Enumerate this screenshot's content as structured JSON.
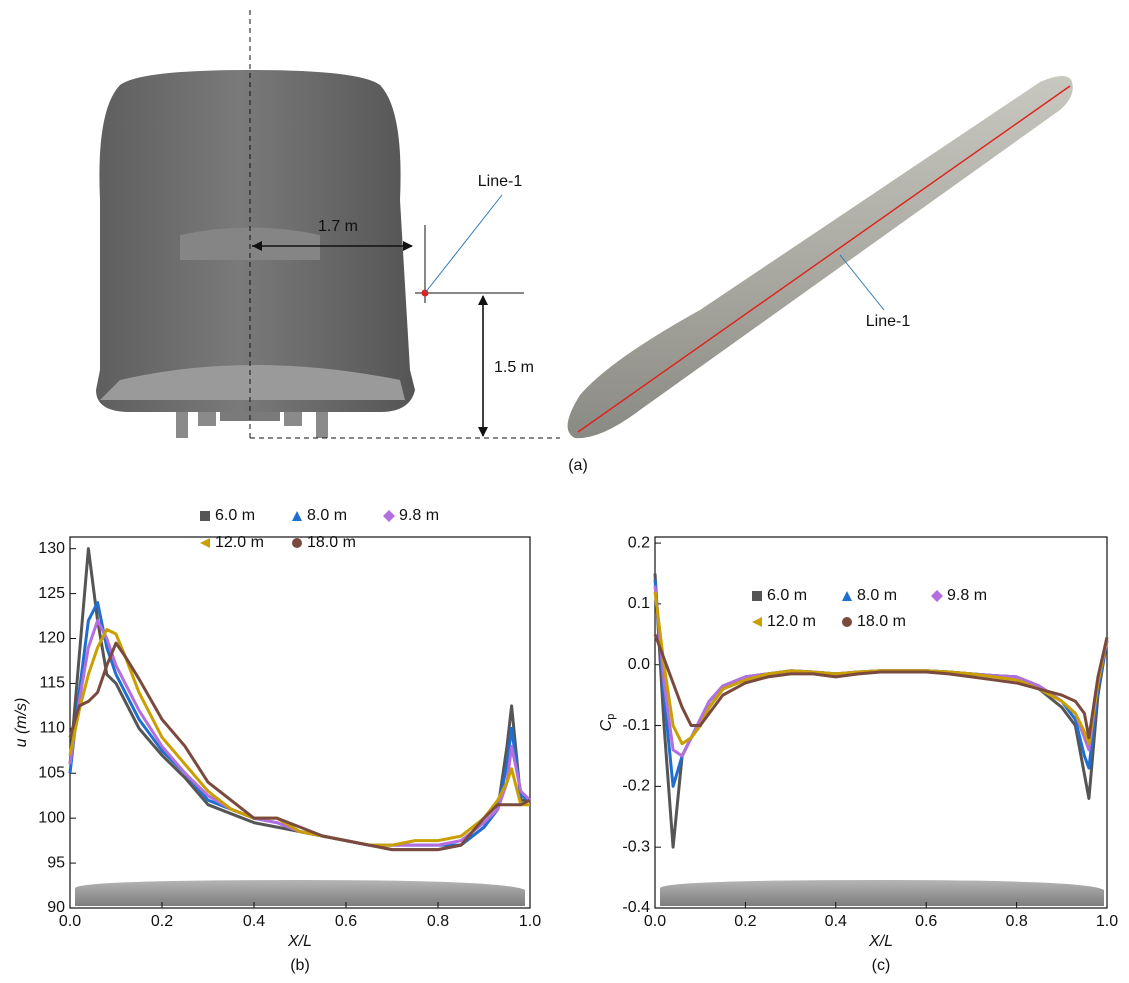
{
  "figure_a": {
    "dim_width": "1.7 m",
    "dim_height": "1.5 m",
    "line_label_front": "Line-1",
    "line_label_side": "Line-1",
    "label": "(a)"
  },
  "chart_data": [
    {
      "type": "line",
      "label": "(b)",
      "xlabel": "X/L",
      "ylabel": "u (m/s)",
      "x": [
        0,
        0.02,
        0.04,
        0.06,
        0.08,
        0.1,
        0.12,
        0.15,
        0.2,
        0.25,
        0.3,
        0.35,
        0.4,
        0.45,
        0.5,
        0.55,
        0.6,
        0.65,
        0.7,
        0.75,
        0.8,
        0.85,
        0.9,
        0.93,
        0.95,
        0.96,
        0.98,
        1.0
      ],
      "series": [
        {
          "name": "6.0 m",
          "color": "#555555",
          "marker": "square",
          "values": [
            106,
            118,
            130,
            122,
            116,
            115,
            113,
            110,
            107,
            104.5,
            101.5,
            100.5,
            99.5,
            99,
            98.5,
            98,
            97.5,
            97,
            96.5,
            96.5,
            96.5,
            97,
            99,
            101,
            108,
            112.5,
            102,
            102
          ]
        },
        {
          "name": "8.0 m",
          "color": "#1f6fd1",
          "marker": "triangle",
          "values": [
            105,
            114,
            122,
            124,
            119,
            116,
            114,
            111,
            107.5,
            105,
            102,
            101,
            100,
            99.5,
            98.5,
            98,
            97.5,
            97,
            97,
            97,
            97,
            97,
            99,
            101,
            106,
            110,
            102.5,
            102
          ]
        },
        {
          "name": "9.8 m",
          "color": "#b36ee0",
          "marker": "diamond",
          "values": [
            106,
            113,
            119,
            122,
            120,
            117,
            115,
            112,
            108,
            105,
            102.5,
            101,
            100,
            99.5,
            98.5,
            98,
            97.5,
            97,
            97,
            97,
            97,
            97.5,
            99.5,
            101,
            104,
            108,
            103,
            102
          ]
        },
        {
          "name": "12.0 m",
          "color": "#c9a000",
          "marker": "left-triangle",
          "values": [
            107,
            112,
            116,
            119,
            121,
            120.5,
            118,
            114,
            109,
            106,
            103,
            101,
            100,
            100,
            98.5,
            98,
            97.5,
            97,
            97,
            97.5,
            97.5,
            98,
            100,
            102,
            104,
            105.5,
            101.5,
            101.5
          ]
        },
        {
          "name": "18.0 m",
          "color": "#7b4a3f",
          "marker": "circle",
          "values": [
            109,
            112.5,
            113,
            114,
            117,
            119.5,
            118,
            115.5,
            111,
            108,
            104,
            102,
            100,
            100,
            99,
            98,
            97.5,
            97,
            96.5,
            96.5,
            96.5,
            97,
            100,
            101.5,
            101.5,
            101.5,
            101.5,
            102
          ]
        }
      ],
      "xlim": [
        0,
        1
      ],
      "ylim": [
        90,
        131.3
      ],
      "xticks": [
        {
          "value": 0,
          "label": "0.0"
        },
        0.2,
        0.4,
        0.6,
        0.8,
        {
          "value": 1,
          "label": "1.0"
        }
      ],
      "yticks": [
        90,
        95,
        100,
        105,
        110,
        115,
        120,
        125,
        130
      ]
    },
    {
      "type": "line",
      "label": "(c)",
      "xlabel": "X/L",
      "ylabel": "C",
      "ylabel_sub": "p",
      "x": [
        0,
        0.02,
        0.04,
        0.06,
        0.08,
        0.1,
        0.12,
        0.15,
        0.2,
        0.25,
        0.3,
        0.35,
        0.4,
        0.45,
        0.5,
        0.55,
        0.6,
        0.65,
        0.7,
        0.75,
        0.8,
        0.85,
        0.9,
        0.93,
        0.95,
        0.96,
        0.98,
        1.0
      ],
      "series": [
        {
          "name": "6.0 m",
          "color": "#555555",
          "marker": "square",
          "values": [
            0.15,
            -0.1,
            -0.3,
            -0.15,
            -0.12,
            -0.1,
            -0.07,
            -0.04,
            -0.02,
            -0.015,
            -0.01,
            -0.012,
            -0.015,
            -0.012,
            -0.01,
            -0.01,
            -0.01,
            -0.012,
            -0.015,
            -0.018,
            -0.02,
            -0.04,
            -0.07,
            -0.1,
            -0.18,
            -0.22,
            -0.05,
            0.04
          ]
        },
        {
          "name": "8.0 m",
          "color": "#1f6fd1",
          "marker": "triangle",
          "values": [
            0.14,
            -0.05,
            -0.2,
            -0.15,
            -0.12,
            -0.09,
            -0.06,
            -0.035,
            -0.02,
            -0.015,
            -0.01,
            -0.012,
            -0.015,
            -0.012,
            -0.01,
            -0.01,
            -0.01,
            -0.012,
            -0.015,
            -0.018,
            -0.02,
            -0.035,
            -0.06,
            -0.09,
            -0.15,
            -0.17,
            -0.04,
            0.04
          ]
        },
        {
          "name": "9.8 m",
          "color": "#b36ee0",
          "marker": "diamond",
          "values": [
            0.13,
            -0.03,
            -0.14,
            -0.15,
            -0.12,
            -0.09,
            -0.06,
            -0.035,
            -0.02,
            -0.015,
            -0.01,
            -0.012,
            -0.015,
            -0.012,
            -0.01,
            -0.01,
            -0.01,
            -0.012,
            -0.015,
            -0.018,
            -0.02,
            -0.035,
            -0.06,
            -0.08,
            -0.12,
            -0.14,
            -0.03,
            0.04
          ]
        },
        {
          "name": "12.0 m",
          "color": "#c9a000",
          "marker": "left-triangle",
          "values": [
            0.12,
            0,
            -0.1,
            -0.13,
            -0.12,
            -0.1,
            -0.07,
            -0.04,
            -0.025,
            -0.015,
            -0.01,
            -0.012,
            -0.015,
            -0.012,
            -0.01,
            -0.01,
            -0.01,
            -0.012,
            -0.015,
            -0.02,
            -0.025,
            -0.04,
            -0.06,
            -0.08,
            -0.11,
            -0.13,
            -0.03,
            0.045
          ]
        },
        {
          "name": "18.0 m",
          "color": "#7b4a3f",
          "marker": "circle",
          "values": [
            0.05,
            0.01,
            -0.03,
            -0.07,
            -0.1,
            -0.1,
            -0.08,
            -0.05,
            -0.03,
            -0.02,
            -0.015,
            -0.015,
            -0.02,
            -0.015,
            -0.012,
            -0.012,
            -0.012,
            -0.015,
            -0.02,
            -0.025,
            -0.03,
            -0.04,
            -0.05,
            -0.06,
            -0.08,
            -0.12,
            -0.02,
            0.045
          ]
        }
      ],
      "xlim": [
        0,
        1
      ],
      "ylim": [
        -0.4,
        0.21
      ],
      "xticks": [
        {
          "value": 0,
          "label": "0.0"
        },
        0.2,
        0.4,
        0.6,
        0.8,
        {
          "value": 1,
          "label": "1.0"
        }
      ],
      "yticks": [
        -0.4,
        -0.3,
        -0.2,
        -0.1,
        {
          "value": 0,
          "label": "0.0"
        },
        0.1,
        0.2
      ]
    }
  ]
}
